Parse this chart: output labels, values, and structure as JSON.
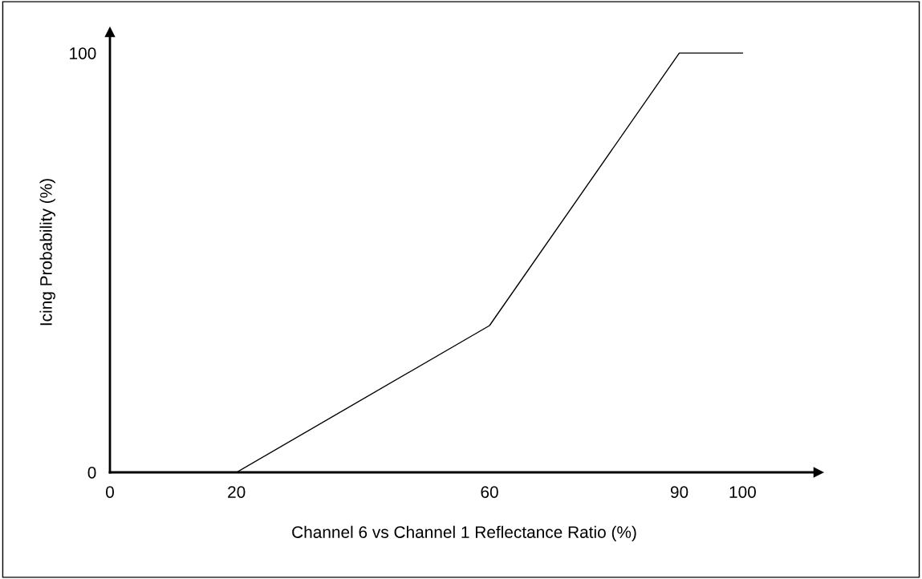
{
  "chart_data": {
    "type": "line",
    "xlabel": "Channel 6 vs Channel 1 Reflectance Ratio (%)",
    "ylabel": "Icing Probability (%)",
    "x": [
      20,
      60,
      90,
      100
    ],
    "series": [
      {
        "color": "#000000",
        "values": [
          0,
          35,
          100,
          100
        ]
      }
    ],
    "xlim": [
      0,
      112
    ],
    "ylim": [
      0,
      105
    ],
    "xticks": [
      0,
      20,
      60,
      90,
      100
    ],
    "yticks": [
      0,
      100
    ],
    "grid": false,
    "legend": false,
    "marker": "none",
    "line_style": "solid"
  }
}
